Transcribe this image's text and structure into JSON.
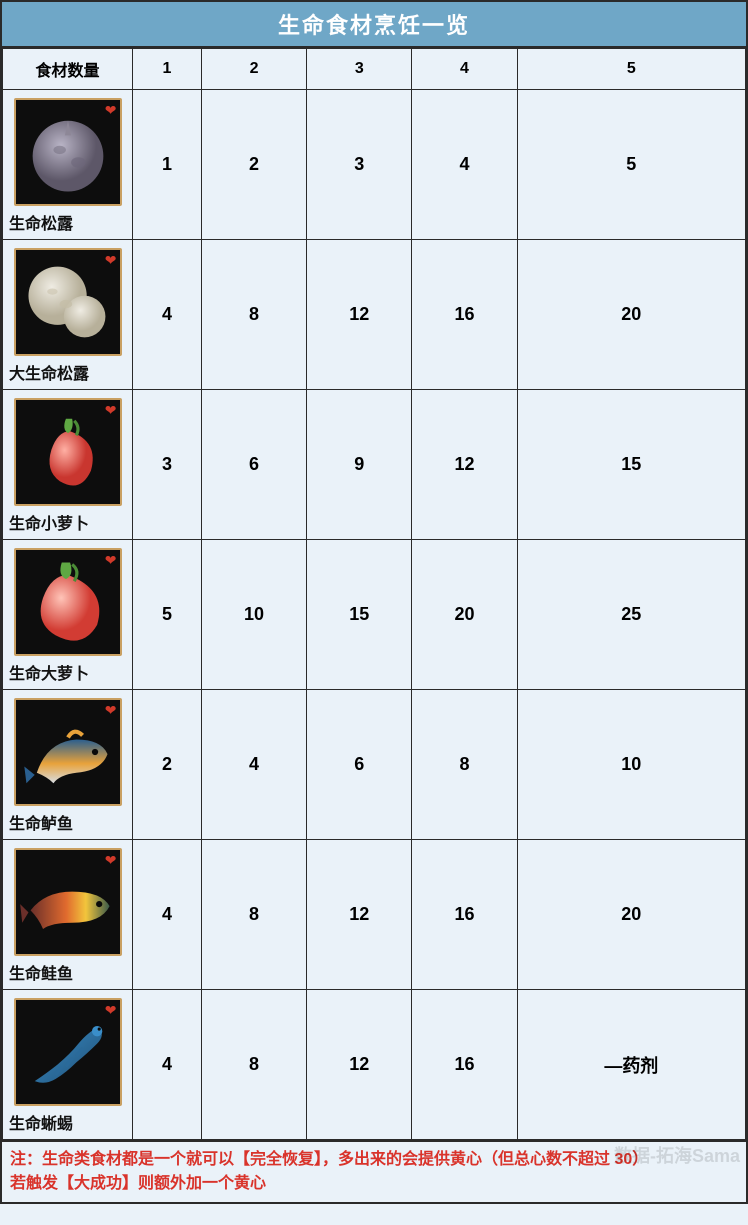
{
  "title": "生命食材烹饪一览",
  "header_label": "食材数量",
  "columns": [
    "1",
    "2",
    "3",
    "4",
    "5"
  ],
  "ingredients": [
    {
      "id": "truffle",
      "name": "生命松露",
      "values": [
        "1",
        "2",
        "3",
        "4",
        "5"
      ],
      "icon": "truffle"
    },
    {
      "id": "big_truffle",
      "name": "大生命松露",
      "values": [
        "4",
        "8",
        "12",
        "16",
        "20"
      ],
      "icon": "big_truffle"
    },
    {
      "id": "small_radish",
      "name": "生命小萝卜",
      "values": [
        "3",
        "6",
        "9",
        "12",
        "15"
      ],
      "icon": "radish_small"
    },
    {
      "id": "big_radish",
      "name": "生命大萝卜",
      "values": [
        "5",
        "10",
        "15",
        "20",
        "25"
      ],
      "icon": "radish_big"
    },
    {
      "id": "bass",
      "name": "生命鲈鱼",
      "values": [
        "2",
        "4",
        "6",
        "8",
        "10"
      ],
      "icon": "bass"
    },
    {
      "id": "salmon",
      "name": "生命鲑鱼",
      "values": [
        "4",
        "8",
        "12",
        "16",
        "20"
      ],
      "icon": "salmon"
    },
    {
      "id": "lizard",
      "name": "生命蜥蜴",
      "values": [
        "4",
        "8",
        "12",
        "16",
        "—药剂"
      ],
      "icon": "lizard"
    }
  ],
  "note_line1": "注：生命类食材都是一个就可以【完全恢复】，多出来的会提供黄心（但总心数不超过 30）",
  "note_line2": "若触发【大成功】则额外加一个黄心",
  "watermark": "数据-拓海Sama",
  "colors": {
    "header_bg": "#6fa7c7",
    "header_text": "#ffffff",
    "body_bg": "#eaf2f9",
    "border": "#2a2a2a",
    "note_text": "#d9332b",
    "icon_border": "#c9a062",
    "icon_bg": "#0d0d0d",
    "heart": "#d13a2a"
  }
}
